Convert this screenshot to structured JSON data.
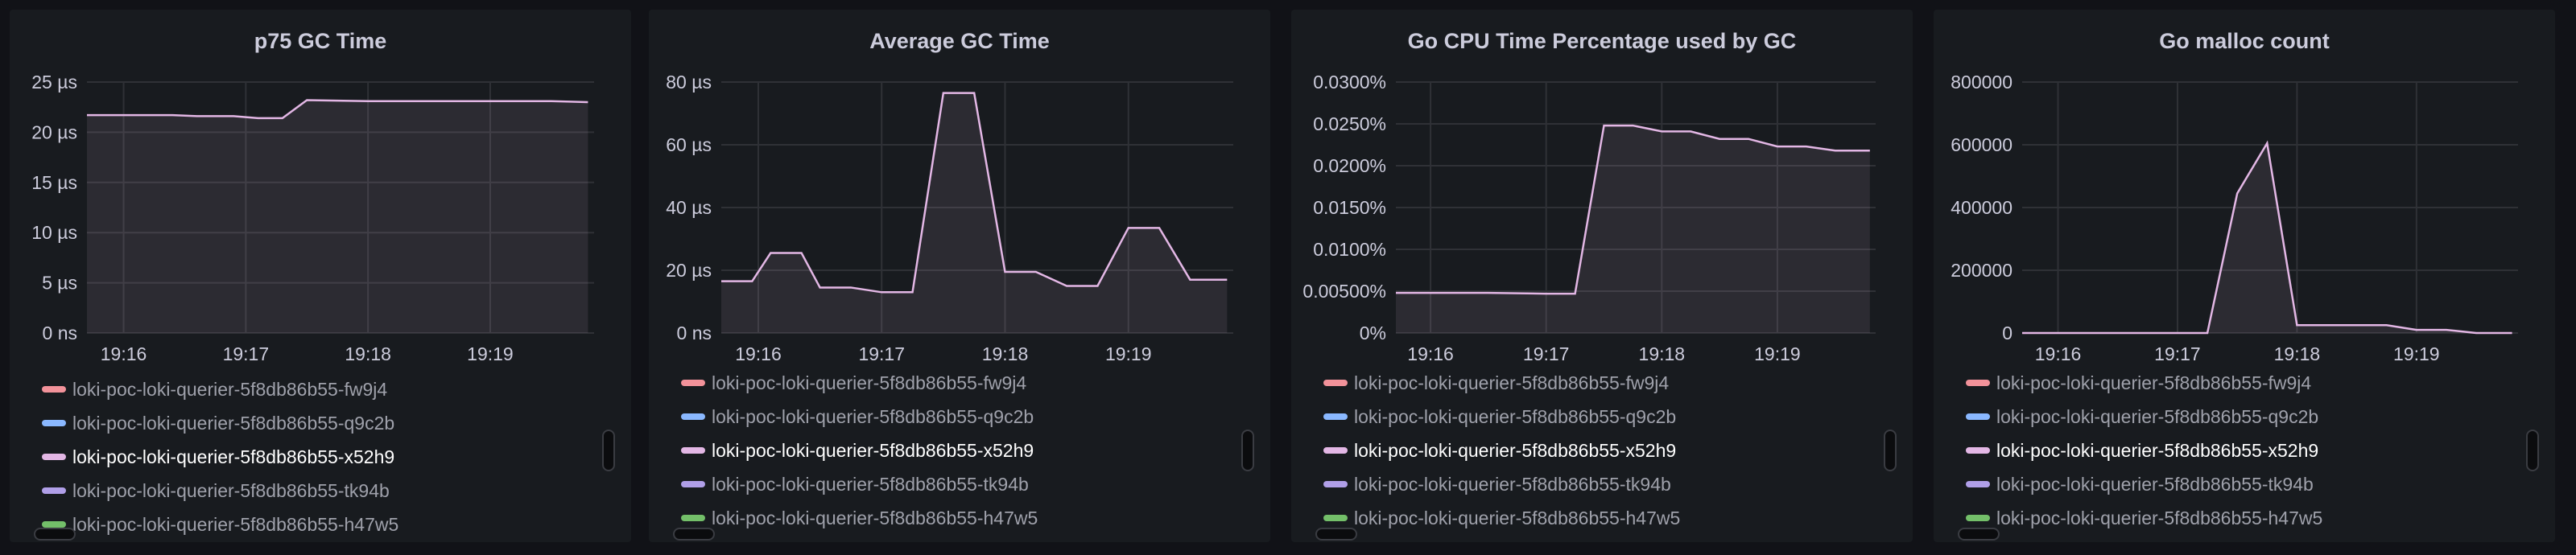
{
  "panels": [
    {
      "title": "p75 GC Time",
      "legend_offset": 0,
      "chart_data": {
        "type": "area",
        "title": "p75 GC Time",
        "x_ticks": [
          "19:16",
          "19:17",
          "19:18",
          "19:19"
        ],
        "x_tick_values": [
          16,
          17,
          18,
          19
        ],
        "x_range": [
          15.7,
          19.85
        ],
        "y_ticks": [
          "0 ns",
          "5 µs",
          "10 µs",
          "15 µs",
          "20 µs",
          "25 µs"
        ],
        "y_tick_values": [
          0,
          5,
          10,
          15,
          20,
          25
        ],
        "ylim": [
          0,
          25
        ],
        "unit": "µs",
        "series": [
          {
            "name": "loki-poc-loki-querier-5f8db86b55-x52h9",
            "x": [
              15.7,
              16.2,
              16.4,
              16.6,
              16.9,
              17.1,
              17.3,
              17.5,
              18.0,
              18.5,
              19.0,
              19.5,
              19.8
            ],
            "y": [
              21.7,
              21.7,
              21.7,
              21.6,
              21.6,
              21.4,
              21.4,
              23.2,
              23.1,
              23.1,
              23.1,
              23.1,
              23.0
            ]
          }
        ]
      }
    },
    {
      "title": "Average GC Time",
      "legend_offset": -8,
      "chart_data": {
        "type": "area",
        "title": "Average GC Time",
        "x_ticks": [
          "19:16",
          "19:17",
          "19:18",
          "19:19"
        ],
        "x_tick_values": [
          16,
          17,
          18,
          19
        ],
        "x_range": [
          15.7,
          19.85
        ],
        "y_ticks": [
          "0 ns",
          "20 µs",
          "40 µs",
          "60 µs",
          "80 µs"
        ],
        "y_tick_values": [
          0,
          20,
          40,
          60,
          80
        ],
        "ylim": [
          0,
          80
        ],
        "unit": "µs",
        "series": [
          {
            "name": "loki-poc-loki-querier-5f8db86b55-x52h9",
            "x": [
              15.7,
              15.95,
              16.1,
              16.35,
              16.5,
              16.75,
              17.0,
              17.25,
              17.5,
              17.75,
              18.0,
              18.25,
              18.5,
              18.75,
              19.0,
              19.25,
              19.5,
              19.8
            ],
            "y": [
              16.5,
              16.5,
              25.5,
              25.5,
              14.5,
              14.5,
              13,
              13,
              76.5,
              76.5,
              19.5,
              19.5,
              15,
              15,
              33.5,
              33.5,
              17,
              17
            ]
          }
        ]
      }
    },
    {
      "title": "Go CPU Time Percentage used by GC",
      "legend_offset": -8,
      "chart_data": {
        "type": "area",
        "title": "Go CPU Time Percentage used by GC",
        "x_ticks": [
          "19:16",
          "19:17",
          "19:18",
          "19:19"
        ],
        "x_tick_values": [
          16,
          17,
          18,
          19
        ],
        "x_range": [
          15.7,
          19.85
        ],
        "y_ticks": [
          "0%",
          "0.00500%",
          "0.0100%",
          "0.0150%",
          "0.0200%",
          "0.0250%",
          "0.0300%"
        ],
        "y_tick_values": [
          0,
          0.005,
          0.01,
          0.015,
          0.02,
          0.025,
          0.03
        ],
        "ylim": [
          0,
          0.03
        ],
        "unit": "%",
        "series": [
          {
            "name": "loki-poc-loki-querier-5f8db86b55-x52h9",
            "x": [
              15.7,
              16.0,
              16.5,
              17.0,
              17.25,
              17.5,
              17.75,
              18.0,
              18.25,
              18.5,
              18.75,
              19.0,
              19.25,
              19.5,
              19.8
            ],
            "y": [
              0.0048,
              0.0048,
              0.0048,
              0.0047,
              0.0047,
              0.0248,
              0.0248,
              0.0241,
              0.0241,
              0.0232,
              0.0232,
              0.0223,
              0.0223,
              0.0218,
              0.0218
            ]
          }
        ]
      }
    },
    {
      "title": "Go malloc count",
      "legend_offset": -8,
      "chart_data": {
        "type": "area",
        "title": "Go malloc count",
        "x_ticks": [
          "19:16",
          "19:17",
          "19:18",
          "19:19"
        ],
        "x_tick_values": [
          16,
          17,
          18,
          19
        ],
        "x_range": [
          15.7,
          19.85
        ],
        "y_ticks": [
          "0",
          "200000",
          "400000",
          "600000",
          "800000"
        ],
        "y_tick_values": [
          0,
          200000,
          400000,
          600000,
          800000
        ],
        "ylim": [
          0,
          800000
        ],
        "unit": "",
        "series": [
          {
            "name": "loki-poc-loki-querier-5f8db86b55-x52h9",
            "x": [
              15.7,
              16.0,
              16.5,
              17.0,
              17.25,
              17.5,
              17.75,
              18.0,
              18.25,
              18.5,
              18.75,
              19.0,
              19.25,
              19.5,
              19.8
            ],
            "y": [
              0,
              0,
              0,
              0,
              0,
              445000,
              605000,
              25000,
              25000,
              25000,
              25000,
              10000,
              10000,
              0,
              0
            ]
          }
        ]
      }
    }
  ],
  "legend_items": [
    {
      "label": "loki-poc-loki-querier-5f8db86b55-fw9j4",
      "color": "#f2929a",
      "active": false
    },
    {
      "label": "loki-poc-loki-querier-5f8db86b55-q9c2b",
      "color": "#8ab8ff",
      "active": false
    },
    {
      "label": "loki-poc-loki-querier-5f8db86b55-x52h9",
      "color": "#e3b7e5",
      "active": true
    },
    {
      "label": "loki-poc-loki-querier-5f8db86b55-tk94b",
      "color": "#b09fe8",
      "active": false
    },
    {
      "label": "loki-poc-loki-querier-5f8db86b55-h47w5",
      "color": "#73bf69",
      "active": false
    }
  ],
  "colors": {
    "series_line": "#e3b7e5",
    "series_fill": "#e3b7e5",
    "grid": "#2f3136",
    "axis_text": "#ccccdc",
    "panel_bg": "#181b1f",
    "page_bg": "#111217"
  }
}
